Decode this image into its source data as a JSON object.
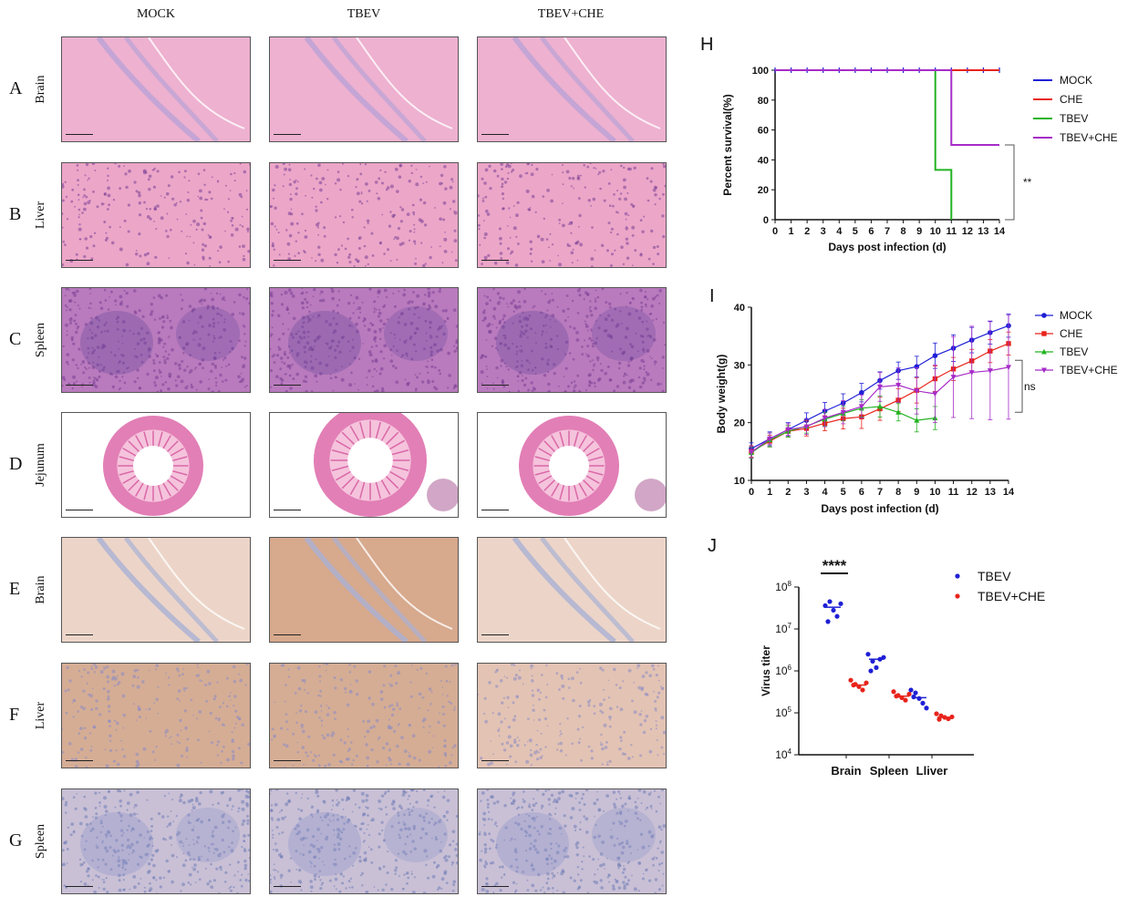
{
  "columns": [
    "MOCK",
    "TBEV",
    "TBEV+CHE"
  ],
  "rows": [
    {
      "letter": "A",
      "tissue": "Brain",
      "stain": "he"
    },
    {
      "letter": "B",
      "tissue": "Liver",
      "stain": "he"
    },
    {
      "letter": "C",
      "tissue": "Spleen",
      "stain": "he"
    },
    {
      "letter": "D",
      "tissue": "Jejunum",
      "stain": "he"
    },
    {
      "letter": "E",
      "tissue": "Brain",
      "stain": "ihc"
    },
    {
      "letter": "F",
      "tissue": "Liver",
      "stain": "ihc"
    },
    {
      "letter": "G",
      "tissue": "Spleen",
      "stain": "ihc"
    }
  ],
  "colors": {
    "mock": "#1f1fd6",
    "che": "#e8231b",
    "tbev": "#22b322",
    "tbev_che": "#a62cc8",
    "he_pink": "#eca6c8",
    "he_purple": "#9a6fb8",
    "ihc_brown": "#d9b9a0",
    "ihc_blue": "#9aa3cf"
  },
  "chart_data": [
    {
      "panel_label": "H",
      "type": "line",
      "subtype": "kaplan-meier step",
      "xlabel": "Days post infection (d)",
      "ylabel": "Percent survival(%)",
      "xlim": [
        0,
        14
      ],
      "ylim": [
        0,
        100
      ],
      "xticks": [
        0,
        1,
        2,
        3,
        4,
        5,
        6,
        7,
        8,
        9,
        10,
        11,
        12,
        13,
        14
      ],
      "yticks": [
        0,
        20,
        40,
        60,
        80,
        100
      ],
      "series": [
        {
          "name": "MOCK",
          "color": "#1f1fd6",
          "steps": [
            [
              0,
              100
            ],
            [
              14,
              100
            ]
          ]
        },
        {
          "name": "CHE",
          "color": "#e8231b",
          "steps": [
            [
              0,
              100
            ],
            [
              14,
              100
            ]
          ]
        },
        {
          "name": "TBEV",
          "color": "#22b322",
          "steps": [
            [
              0,
              100
            ],
            [
              10,
              100
            ],
            [
              10,
              33.3
            ],
            [
              11,
              33.3
            ],
            [
              11,
              0
            ]
          ]
        },
        {
          "name": "TBEV+CHE",
          "color": "#a62cc8",
          "steps": [
            [
              0,
              100
            ],
            [
              11,
              100
            ],
            [
              11,
              50
            ],
            [
              14,
              50
            ]
          ]
        }
      ],
      "annotation": "**",
      "legend": "right"
    },
    {
      "panel_label": "I",
      "type": "line",
      "xlabel": "Days post infection (d)",
      "ylabel": "Body weight(g)",
      "xlim": [
        0,
        14
      ],
      "ylim": [
        10,
        40
      ],
      "xticks": [
        0,
        1,
        2,
        3,
        4,
        5,
        6,
        7,
        8,
        9,
        10,
        11,
        12,
        13,
        14
      ],
      "yticks": [
        10,
        20,
        30,
        40
      ],
      "series": [
        {
          "name": "MOCK",
          "color": "#1f1fd6",
          "marker": "circle",
          "x": [
            0,
            1,
            2,
            3,
            4,
            5,
            6,
            7,
            8,
            9,
            10,
            11,
            12,
            13,
            14
          ],
          "values": [
            15.5,
            17.2,
            18.8,
            20.4,
            22.0,
            23.4,
            25.2,
            27.3,
            29.0,
            29.7,
            31.6,
            32.9,
            34.3,
            35.6,
            36.8
          ],
          "err": [
            1.0,
            1.2,
            1.2,
            1.3,
            1.5,
            1.6,
            1.6,
            1.5,
            1.5,
            1.8,
            2.2,
            2.3,
            2.2,
            2.0,
            2.0
          ]
        },
        {
          "name": "CHE",
          "color": "#e8231b",
          "marker": "square",
          "x": [
            0,
            1,
            2,
            3,
            4,
            5,
            6,
            7,
            8,
            9,
            10,
            11,
            12,
            13,
            14
          ],
          "values": [
            15.0,
            16.8,
            18.5,
            19.0,
            19.9,
            20.7,
            21.0,
            22.4,
            23.9,
            25.6,
            27.6,
            29.3,
            30.7,
            32.4,
            33.7
          ],
          "err": [
            1.0,
            1.0,
            1.0,
            1.3,
            1.3,
            1.8,
            2.0,
            2.0,
            2.0,
            2.2,
            2.2,
            2.0,
            2.0,
            2.0,
            2.0
          ]
        },
        {
          "name": "TBEV",
          "color": "#22b322",
          "marker": "triangle",
          "x": [
            0,
            1,
            2,
            3,
            4,
            5,
            6,
            7,
            8,
            9,
            10
          ],
          "values": [
            14.8,
            17.0,
            18.5,
            19.4,
            20.6,
            21.6,
            22.5,
            22.8,
            21.8,
            20.4,
            20.8
          ],
          "err": [
            1.0,
            1.2,
            1.0,
            1.2,
            1.2,
            1.3,
            1.5,
            1.8,
            1.5,
            2.0,
            2.0
          ]
        },
        {
          "name": "TBEV+CHE",
          "color": "#a62cc8",
          "marker": "triangle-down",
          "x": [
            0,
            1,
            2,
            3,
            4,
            5,
            6,
            7,
            8,
            9,
            10,
            11,
            12,
            13,
            14
          ],
          "values": [
            14.9,
            17.2,
            18.8,
            19.3,
            20.8,
            21.8,
            22.8,
            26.2,
            26.5,
            25.5,
            25.0,
            27.9,
            28.7,
            29.0,
            29.6
          ],
          "err": [
            1.0,
            1.0,
            1.0,
            1.3,
            1.5,
            2.0,
            2.0,
            2.5,
            3.0,
            4.0,
            5.0,
            7.0,
            8.0,
            8.5,
            9.0
          ]
        }
      ],
      "annotation": "ns",
      "legend": "right"
    },
    {
      "panel_label": "J",
      "type": "scatter",
      "ylabel": "Virus titer",
      "yscale": "log",
      "ylim": [
        10000,
        100000000
      ],
      "ytick_labels": [
        "10^8",
        "10^7",
        "10^6",
        "10^5",
        "10^4"
      ],
      "categories": [
        "Brain",
        "Spleen",
        "Lliver"
      ],
      "series": [
        {
          "name": "TBEV",
          "color": "#1f1fd6",
          "points": [
            [
              36000000,
              45000000,
              28000000,
              20000000,
              40000000,
              15000000
            ],
            [
              2500000,
              1700000,
              1200000,
              1900000,
              2100000,
              1000000
            ],
            [
              350000,
              300000,
              220000,
              170000,
              130000,
              240000
            ]
          ],
          "median": [
            33000000,
            1900000,
            230000
          ]
        },
        {
          "name": "TBEV+CHE",
          "color": "#e8231b",
          "points": [
            [
              600000,
              480000,
              420000,
              350000,
              520000,
              460000
            ],
            [
              320000,
              260000,
              230000,
              200000,
              280000,
              250000
            ],
            [
              95000,
              85000,
              78000,
              72000,
              80000,
              70000
            ]
          ],
          "median": [
            460000,
            250000,
            78000
          ]
        }
      ],
      "annotation": "****",
      "legend": "top-right"
    }
  ]
}
